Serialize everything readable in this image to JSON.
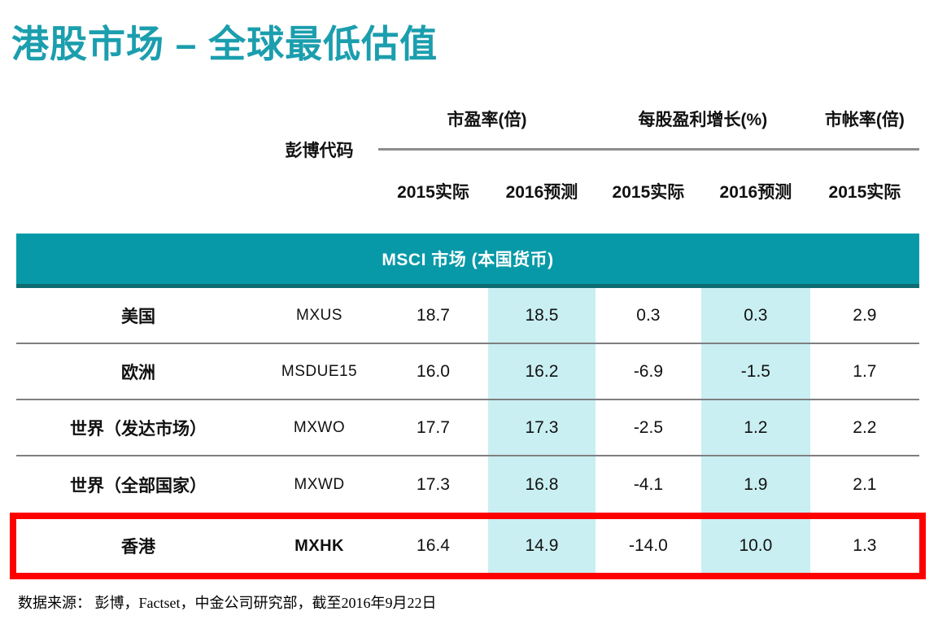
{
  "title": "港股市场 – 全球最低估值",
  "colors": {
    "title_teal": "#1B9EAE",
    "banner_bg": "#0899A8",
    "banner_border": "#0E6B70",
    "highlight": "#C9EFF2",
    "divider": "#7F7F7F",
    "red": "#FF0000"
  },
  "table": {
    "code_header": "彭博代码",
    "groups": [
      {
        "label": "市盈率(倍)"
      },
      {
        "label": "每股盈利增长(%)"
      },
      {
        "label": "市帐率(倍)"
      }
    ],
    "subheaders": [
      "2015实际",
      "2016预测",
      "2015实际",
      "2016预测",
      "2015实际"
    ],
    "banner": "MSCI 市场 (本国货币)",
    "rows": [
      {
        "region": "美国",
        "code": "MXUS",
        "values": [
          "18.7",
          "18.5",
          "0.3",
          "0.3",
          "2.9"
        ],
        "highlighted": false
      },
      {
        "region": "欧洲",
        "code": "MSDUE15",
        "values": [
          "16.0",
          "16.2",
          "-6.9",
          "-1.5",
          "1.7"
        ],
        "highlighted": false
      },
      {
        "region": "世界（发达市场）",
        "code": "MXWO",
        "values": [
          "17.7",
          "17.3",
          "-2.5",
          "1.2",
          "2.2"
        ],
        "highlighted": false
      },
      {
        "region": "世界（全部国家）",
        "code": "MXWD",
        "values": [
          "17.3",
          "16.8",
          "-4.1",
          "1.9",
          "2.1"
        ],
        "highlighted": false
      },
      {
        "region": "香港",
        "code": "MXHK",
        "values": [
          "16.4",
          "14.9",
          "-14.0",
          "10.0",
          "1.3"
        ],
        "highlighted": true
      }
    ]
  },
  "footer": "数据来源：  彭博，Factset，中金公司研究部，截至2016年9月22日"
}
